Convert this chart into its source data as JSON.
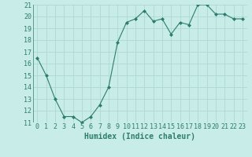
{
  "x": [
    0,
    1,
    2,
    3,
    4,
    5,
    6,
    7,
    8,
    9,
    10,
    11,
    12,
    13,
    14,
    15,
    16,
    17,
    18,
    19,
    20,
    21,
    22,
    23
  ],
  "y": [
    16.5,
    15.0,
    13.0,
    11.5,
    11.5,
    11.0,
    11.5,
    12.5,
    14.0,
    17.8,
    19.5,
    19.8,
    20.5,
    19.6,
    19.8,
    18.5,
    19.5,
    19.3,
    21.0,
    21.0,
    20.2,
    20.2,
    19.8,
    19.8
  ],
  "line_color": "#2d7d6e",
  "marker": "D",
  "marker_size": 2,
  "bg_color": "#c8ece8",
  "grid_color": "#b0d8d2",
  "xlabel": "Humidex (Indice chaleur)",
  "ylim": [
    11,
    21
  ],
  "xlim": [
    -0.5,
    23.5
  ],
  "yticks": [
    11,
    12,
    13,
    14,
    15,
    16,
    17,
    18,
    19,
    20,
    21
  ],
  "xticks": [
    0,
    1,
    2,
    3,
    4,
    5,
    6,
    7,
    8,
    9,
    10,
    11,
    12,
    13,
    14,
    15,
    16,
    17,
    18,
    19,
    20,
    21,
    22,
    23
  ],
  "xlabel_fontsize": 7,
  "tick_fontsize": 6,
  "tick_color": "#2d7d6e"
}
